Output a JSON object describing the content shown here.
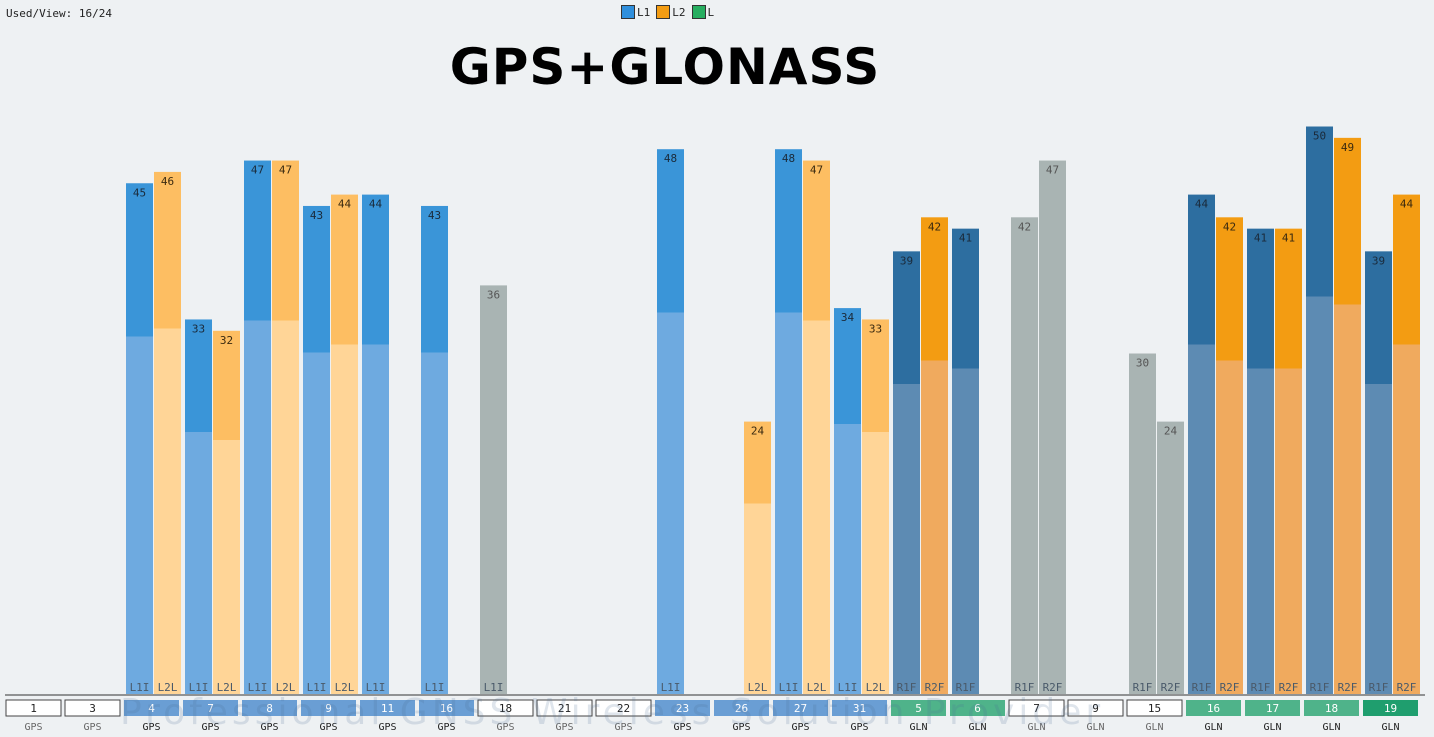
{
  "status": {
    "used_view": "Used/View: 16/24"
  },
  "legend": [
    {
      "label": "L1",
      "color": "#2f8fdc"
    },
    {
      "label": "L2",
      "color": "#f39c12"
    },
    {
      "label": "L",
      "color": "#27ae60"
    }
  ],
  "title": "GPS+GLONASS",
  "watermark": "Professional GNSS Wireless Solution Provider",
  "colors": {
    "l1_top": "#3a95d8",
    "l1_bottom": "#6eaae0",
    "l2_top": "#fdbe62",
    "l2_bottom": "#ffd597",
    "gray": "#a9b4b3",
    "gln_r1_top": "#2d6ea0",
    "gln_r1_bottom": "#5d8bb3",
    "gln_r2_top": "#f39c12",
    "gln_r2_bottom": "#f0aa5e",
    "tab_active": "#6a9ed4",
    "tab_gln_active": "#4fb38a",
    "tab_gln_active_dark": "#1f9e6e"
  },
  "chart_data": {
    "type": "bar",
    "title": "GPS+GLONASS",
    "ylim": [
      0,
      55
    ],
    "satellites": [
      {
        "id": "1",
        "system": "GPS",
        "active": false,
        "signals": []
      },
      {
        "id": "3",
        "system": "GPS",
        "active": false,
        "signals": []
      },
      {
        "id": "4",
        "system": "GPS",
        "active": true,
        "signals": [
          {
            "name": "L1I",
            "value": 45,
            "band": "l1"
          },
          {
            "name": "L2L",
            "value": 46,
            "band": "l2"
          }
        ]
      },
      {
        "id": "7",
        "system": "GPS",
        "active": true,
        "signals": [
          {
            "name": "L1I",
            "value": 33,
            "band": "l1"
          },
          {
            "name": "L2L",
            "value": 32,
            "band": "l2"
          }
        ]
      },
      {
        "id": "8",
        "system": "GPS",
        "active": true,
        "signals": [
          {
            "name": "L1I",
            "value": 47,
            "band": "l1"
          },
          {
            "name": "L2L",
            "value": 47,
            "band": "l2"
          }
        ]
      },
      {
        "id": "9",
        "system": "GPS",
        "active": true,
        "signals": [
          {
            "name": "L1I",
            "value": 43,
            "band": "l1"
          },
          {
            "name": "L2L",
            "value": 44,
            "band": "l2"
          }
        ]
      },
      {
        "id": "11",
        "system": "GPS",
        "active": true,
        "signals": [
          {
            "name": "L1I",
            "value": 44,
            "band": "l1"
          }
        ]
      },
      {
        "id": "16",
        "system": "GPS",
        "active": true,
        "signals": [
          {
            "name": "L1I",
            "value": 43,
            "band": "l1"
          }
        ]
      },
      {
        "id": "18",
        "system": "GPS",
        "active": false,
        "signals": [
          {
            "name": "L1I",
            "value": 36,
            "band": "gray"
          }
        ]
      },
      {
        "id": "21",
        "system": "GPS",
        "active": false,
        "signals": []
      },
      {
        "id": "22",
        "system": "GPS",
        "active": false,
        "signals": []
      },
      {
        "id": "23",
        "system": "GPS",
        "active": true,
        "signals": [
          {
            "name": "L1I",
            "value": 48,
            "band": "l1"
          }
        ]
      },
      {
        "id": "26",
        "system": "GPS",
        "active": true,
        "signals": [
          {
            "name": "L2L",
            "value": 24,
            "band": "l2",
            "slot": 1
          }
        ]
      },
      {
        "id": "27",
        "system": "GPS",
        "active": true,
        "signals": [
          {
            "name": "L1I",
            "value": 48,
            "band": "l1"
          },
          {
            "name": "L2L",
            "value": 47,
            "band": "l2"
          }
        ]
      },
      {
        "id": "31",
        "system": "GPS",
        "active": true,
        "signals": [
          {
            "name": "L1I",
            "value": 34,
            "band": "l1"
          },
          {
            "name": "L2L",
            "value": 33,
            "band": "l2"
          }
        ]
      },
      {
        "id": "5",
        "system": "GLN",
        "active": true,
        "signals": [
          {
            "name": "R1F",
            "value": 39,
            "band": "r1"
          },
          {
            "name": "R2F",
            "value": 42,
            "band": "r2"
          }
        ]
      },
      {
        "id": "6",
        "system": "GLN",
        "active": true,
        "signals": [
          {
            "name": "R1F",
            "value": 41,
            "band": "r1"
          }
        ]
      },
      {
        "id": "7",
        "system": "GLN",
        "active": false,
        "signals": [
          {
            "name": "R1F",
            "value": 42,
            "band": "gray"
          },
          {
            "name": "R2F",
            "value": 47,
            "band": "gray"
          }
        ]
      },
      {
        "id": "9",
        "system": "GLN",
        "active": false,
        "signals": []
      },
      {
        "id": "15",
        "system": "GLN",
        "active": false,
        "signals": [
          {
            "name": "R1F",
            "value": 30,
            "band": "gray"
          },
          {
            "name": "R2F",
            "value": 24,
            "band": "gray"
          }
        ]
      },
      {
        "id": "16",
        "system": "GLN",
        "active": true,
        "signals": [
          {
            "name": "R1F",
            "value": 44,
            "band": "r1"
          },
          {
            "name": "R2F",
            "value": 42,
            "band": "r2"
          }
        ]
      },
      {
        "id": "17",
        "system": "GLN",
        "active": true,
        "signals": [
          {
            "name": "R1F",
            "value": 41,
            "band": "r1"
          },
          {
            "name": "R2F",
            "value": 41,
            "band": "r2"
          }
        ]
      },
      {
        "id": "18",
        "system": "GLN",
        "active": true,
        "signals": [
          {
            "name": "R1F",
            "value": 50,
            "band": "r1"
          },
          {
            "name": "R2F",
            "value": 49,
            "band": "r2"
          }
        ]
      },
      {
        "id": "19",
        "system": "GLN",
        "active": true,
        "signals": [
          {
            "name": "R1F",
            "value": 39,
            "band": "r1"
          },
          {
            "name": "R2F",
            "value": 44,
            "band": "r2"
          }
        ]
      }
    ]
  }
}
